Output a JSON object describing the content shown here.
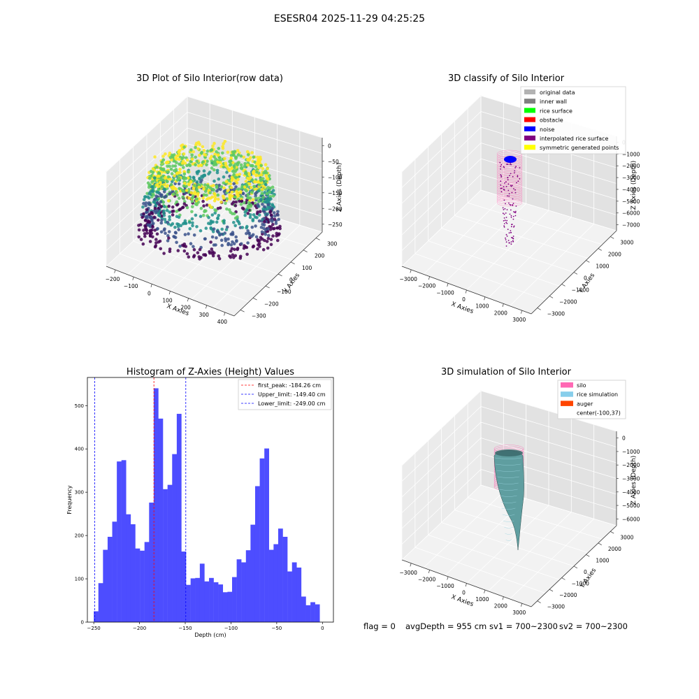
{
  "suptitle": "ESESR04 2025-11-29 04:25:25",
  "chart_data": [
    {
      "type": "scatter3d",
      "title": "3D Plot of Silo Interior(row data)",
      "xlabel": "X Axies",
      "ylabel": "Y Axies",
      "zlabel": "Z Axies (Depth)",
      "xticks": [
        "−200",
        "−100",
        "0",
        "100",
        "200",
        "300",
        "400"
      ],
      "yticks": [
        "−300",
        "−200",
        "−100",
        "0",
        "100",
        "200",
        "300"
      ],
      "zticks": [
        "0",
        "−50",
        "−100",
        "−150",
        "−200",
        "−250"
      ],
      "xlim": [
        -260,
        410
      ],
      "ylim": [
        -320,
        360
      ],
      "zlim": [
        -270,
        0
      ],
      "colormap": [
        "#440154",
        "#3b528b",
        "#21918c",
        "#5ec962",
        "#fde725"
      ]
    },
    {
      "type": "scatter3d",
      "title": "3D classify of Silo Interior",
      "xlabel": "X Axies",
      "ylabel": "Y Axies",
      "zlabel": "Z Axies (Depth)",
      "xticks": [
        "−3000",
        "−2000",
        "−1000",
        "0",
        "1000",
        "2000",
        "3000"
      ],
      "yticks": [
        "−3000",
        "−2000",
        "−1000",
        "0",
        "1000",
        "2000",
        "3000"
      ],
      "zticks": [
        "0",
        "−1000",
        "−2000",
        "−3000",
        "−4000",
        "−5000",
        "−6000",
        "−7000"
      ],
      "legend_position": "top-right",
      "legend": [
        {
          "name": "original data",
          "color": "#b3b3b3"
        },
        {
          "name": "inner wall",
          "color": "#808080"
        },
        {
          "name": "rice surface",
          "color": "#00ff00"
        },
        {
          "name": "obstacle",
          "color": "#ff0000"
        },
        {
          "name": "noise",
          "color": "#0000ff"
        },
        {
          "name": "interpolated rice surface",
          "color": "#800080"
        },
        {
          "name": "symmetric generated points",
          "color": "#ffff00"
        }
      ]
    },
    {
      "type": "bar",
      "title": "Histogram of Z-Axies (Height) Values",
      "xlabel": "Depth (cm)",
      "ylabel": "Frequency",
      "bin_start": -250,
      "bin_width": 5.04,
      "values": [
        25,
        90,
        167,
        197,
        232,
        371,
        374,
        249,
        226,
        170,
        165,
        185,
        276,
        540,
        470,
        307,
        317,
        388,
        481,
        163,
        86,
        101,
        102,
        135,
        94,
        102,
        92,
        87,
        69,
        70,
        104,
        145,
        138,
        166,
        225,
        314,
        378,
        401,
        167,
        180,
        216,
        197,
        117,
        138,
        126,
        59,
        39,
        46,
        41
      ],
      "xlim": [
        -257,
        12
      ],
      "ylim": [
        0,
        565
      ],
      "xticks": [
        -250,
        -200,
        -150,
        -100,
        -50,
        0
      ],
      "xtick_labels": [
        "−250",
        "−200",
        "−150",
        "−100",
        "−50",
        "0"
      ],
      "yticks": [
        0,
        100,
        200,
        300,
        400,
        500
      ],
      "bar_color": "#4d4dff",
      "vlines": [
        {
          "name": "first_peak: -184.26 cm",
          "x": -184.26,
          "color": "#ff0000"
        },
        {
          "name": "Upper_limit: -149.40 cm",
          "x": -149.4,
          "color": "#0000ff"
        },
        {
          "name": "Lower_limit: -249.00 cm",
          "x": -249.0,
          "color": "#0000ff"
        }
      ],
      "legend_position": "top-right"
    },
    {
      "type": "surface3d",
      "title": "3D simulation of Silo Interior",
      "xlabel": "X Axies",
      "ylabel": "Y Axies",
      "zlabel": "Z Axies (Depth)",
      "xticks": [
        "−3000",
        "−2000",
        "−1000",
        "0",
        "1000",
        "2000",
        "3000"
      ],
      "yticks": [
        "−3000",
        "−2000",
        "−1000",
        "0",
        "1000",
        "2000",
        "3000"
      ],
      "zticks": [
        "0",
        "−1000",
        "−2000",
        "−3000",
        "−4000",
        "−5000",
        "−6000"
      ],
      "legend_position": "top-right",
      "legend": [
        {
          "name": "silo",
          "color": "#ff69b4"
        },
        {
          "name": "rice simulation",
          "color": "#87ceeb"
        },
        {
          "name": "auger",
          "color": "#ff4500"
        },
        {
          "name": "center(-100,37)",
          "color": ""
        }
      ]
    }
  ],
  "footer": {
    "flag": "flag = 0",
    "avg": "avgDepth = 955 cm",
    "sv1": "sv1 = 700~2300",
    "sv2": "sv2 = 700~2300"
  }
}
